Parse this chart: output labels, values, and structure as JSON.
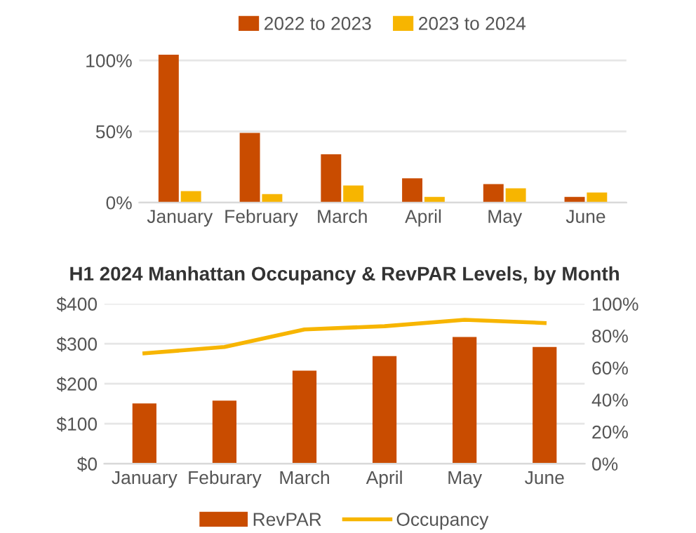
{
  "chart_data": [
    {
      "type": "bar",
      "categories": [
        "January",
        "February",
        "March",
        "April",
        "May",
        "June"
      ],
      "series": [
        {
          "name": "2022 to 2023",
          "color": "#c94c00",
          "values": [
            104,
            49,
            34,
            17,
            13,
            4
          ]
        },
        {
          "name": "2023 to 2024",
          "color": "#f7b500",
          "values": [
            8,
            6,
            12,
            4,
            10,
            7
          ]
        }
      ],
      "ylim": [
        0,
        105
      ],
      "yticks": [
        {
          "value": 0,
          "label": "0%"
        },
        {
          "value": 50,
          "label": "50%"
        },
        {
          "value": 100,
          "label": "100%"
        }
      ],
      "grid": "y",
      "legend": "top"
    },
    {
      "type": "bar",
      "title": "H1 2024 Manhattan Occupancy & RevPAR Levels, by Month",
      "categories": [
        "January",
        "Feburary",
        "March",
        "April",
        "May",
        "June"
      ],
      "series": [
        {
          "name": "RevPAR",
          "color": "#c94c00",
          "values": [
            151,
            158,
            233,
            269,
            317,
            292
          ]
        },
        {
          "name": "Occupancy",
          "type": "line",
          "axis": "y2",
          "color": "#f7b500",
          "values": [
            69,
            73,
            84,
            86,
            90,
            88
          ]
        }
      ],
      "ylim": [
        0,
        400
      ],
      "yticks": [
        {
          "value": 0,
          "label": "$0"
        },
        {
          "value": 100,
          "label": "$100"
        },
        {
          "value": 200,
          "label": "$200"
        },
        {
          "value": 300,
          "label": "$300"
        },
        {
          "value": 400,
          "label": "$400"
        }
      ],
      "y2lim": [
        0,
        100
      ],
      "y2ticks": [
        {
          "value": 0,
          "label": "0%"
        },
        {
          "value": 20,
          "label": "20%"
        },
        {
          "value": 40,
          "label": "40%"
        },
        {
          "value": 60,
          "label": "60%"
        },
        {
          "value": 80,
          "label": "80%"
        },
        {
          "value": 100,
          "label": "100%"
        }
      ],
      "grid": "y",
      "legend": "bottom",
      "marker": "none",
      "line_style": "solid"
    }
  ]
}
